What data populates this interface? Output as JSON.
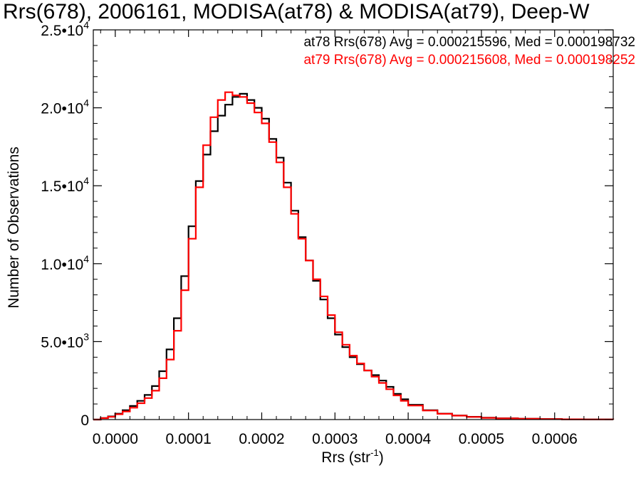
{
  "chart_data": {
    "type": "line",
    "title": "Rrs(678), 2006161, MODISA(at78) & MODISA(at79), Deep-W",
    "xlabel": "Rrs (str",
    "xlabel_sup": "-1",
    "xlabel_close": ")",
    "ylabel": "Number of Observations",
    "xlim": [
      -3e-05,
      0.00068
    ],
    "ylim": [
      0,
      25000
    ],
    "grid": false,
    "x_ticks": [
      {
        "value": 0.0,
        "label": "0.0000"
      },
      {
        "value": 0.0001,
        "label": "0.0001"
      },
      {
        "value": 0.0002,
        "label": "0.0002"
      },
      {
        "value": 0.0003,
        "label": "0.0003"
      },
      {
        "value": 0.0004,
        "label": "0.0004"
      },
      {
        "value": 0.0005,
        "label": "0.0005"
      },
      {
        "value": 0.0006,
        "label": "0.0006"
      }
    ],
    "y_ticks": [
      {
        "value": 0,
        "mant": "0",
        "exp": ""
      },
      {
        "value": 5000,
        "mant": "5.0•10",
        "exp": "3"
      },
      {
        "value": 10000,
        "mant": "1.0•10",
        "exp": "4"
      },
      {
        "value": 15000,
        "mant": "1.5•10",
        "exp": "4"
      },
      {
        "value": 20000,
        "mant": "2.0•10",
        "exp": "4"
      },
      {
        "value": 25000,
        "mant": "2.5•10",
        "exp": "4"
      }
    ],
    "annotations": [
      {
        "text": "at78 Rrs(678) Avg = 0.000215596, Med = 0.000198732",
        "color": "#000000"
      },
      {
        "text": "at79 Rrs(678) Avg = 0.000215608, Med = 0.000198252",
        "color": "#ff0000"
      }
    ],
    "series": [
      {
        "name": "at78",
        "color": "#000000",
        "style": "step",
        "x": [
          -3e-05,
          -2e-05,
          -1e-05,
          0.0,
          1e-05,
          2e-05,
          3e-05,
          4e-05,
          5e-05,
          6e-05,
          7e-05,
          8e-05,
          9e-05,
          0.0001,
          0.00011,
          0.00012,
          0.00013,
          0.00014,
          0.00015,
          0.00016,
          0.00017,
          0.00018,
          0.00019,
          0.0002,
          0.00021,
          0.00022,
          0.00023,
          0.00024,
          0.00025,
          0.00026,
          0.00027,
          0.00028,
          0.00029,
          0.0003,
          0.00031,
          0.00032,
          0.00033,
          0.00034,
          0.00035,
          0.00036,
          0.00037,
          0.00038,
          0.00039,
          0.0004,
          0.00042,
          0.00044,
          0.00046,
          0.00048,
          0.0005,
          0.00052,
          0.00055,
          0.00058,
          0.00061,
          0.00064,
          0.00068
        ],
        "y": [
          0,
          100,
          200,
          380,
          600,
          870,
          1200,
          1580,
          2150,
          3100,
          4500,
          6500,
          9200,
          12400,
          15300,
          17000,
          18500,
          19500,
          20200,
          20700,
          20900,
          20500,
          20000,
          19300,
          18000,
          16800,
          15200,
          13400,
          11700,
          10200,
          8900,
          7700,
          6500,
          5450,
          4650,
          4000,
          3550,
          3150,
          2850,
          2500,
          2100,
          1650,
          1300,
          950,
          600,
          380,
          260,
          180,
          120,
          80,
          55,
          35,
          20,
          10,
          5
        ]
      },
      {
        "name": "at79",
        "color": "#ff0000",
        "style": "step",
        "x": [
          -3e-05,
          -2e-05,
          -1e-05,
          0.0,
          1e-05,
          2e-05,
          3e-05,
          4e-05,
          5e-05,
          6e-05,
          7e-05,
          8e-05,
          9e-05,
          0.0001,
          0.00011,
          0.00012,
          0.00013,
          0.00014,
          0.00015,
          0.00016,
          0.00017,
          0.00018,
          0.00019,
          0.0002,
          0.00021,
          0.00022,
          0.00023,
          0.00024,
          0.00025,
          0.00026,
          0.00027,
          0.00028,
          0.00029,
          0.0003,
          0.00031,
          0.00032,
          0.00033,
          0.00034,
          0.00035,
          0.00036,
          0.00037,
          0.00038,
          0.00039,
          0.0004,
          0.00042,
          0.00044,
          0.00046,
          0.00048,
          0.0005,
          0.00052,
          0.00055,
          0.00058,
          0.00061,
          0.00064,
          0.00068
        ],
        "y": [
          0,
          90,
          180,
          340,
          520,
          760,
          1050,
          1380,
          1850,
          2650,
          3850,
          5700,
          8300,
          11600,
          14900,
          17600,
          19400,
          20500,
          21000,
          20800,
          20700,
          20300,
          19700,
          19000,
          17800,
          16500,
          14900,
          13200,
          11600,
          10200,
          9000,
          7900,
          6700,
          5600,
          4800,
          4100,
          3600,
          3150,
          2750,
          2350,
          1950,
          1550,
          1200,
          900,
          580,
          370,
          250,
          170,
          110,
          75,
          50,
          30,
          18,
          9,
          4
        ]
      }
    ]
  }
}
